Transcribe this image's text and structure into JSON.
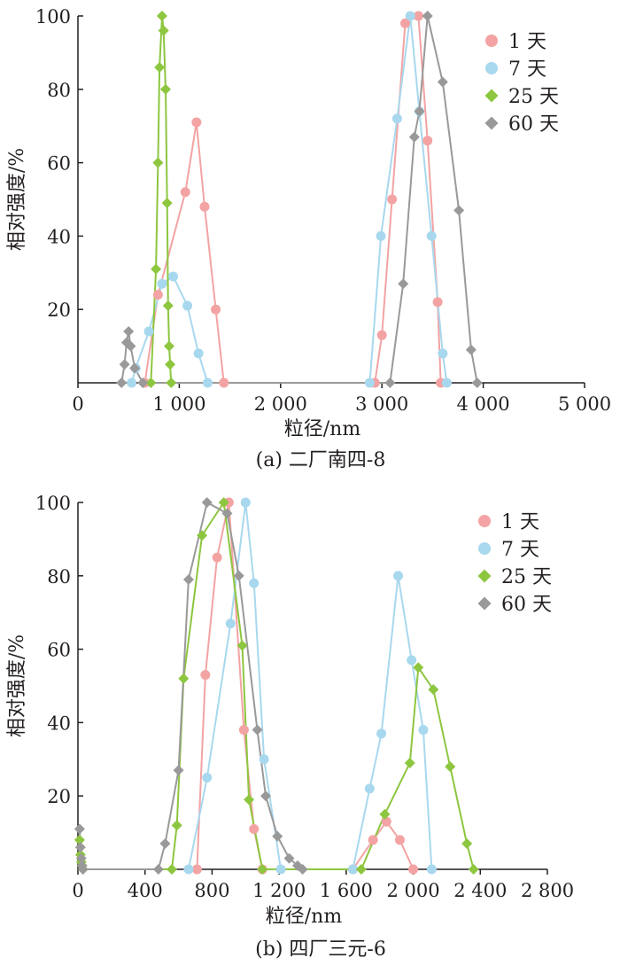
{
  "chart_data": [
    {
      "type": "line",
      "title": "",
      "caption": "(a) 二厂南四-8",
      "xlabel": "粒径/nm",
      "ylabel": "相对强度/%",
      "xlim": [
        0,
        5000
      ],
      "ylim": [
        0,
        100
      ],
      "xticks": [
        0,
        1000,
        2000,
        3000,
        4000,
        5000
      ],
      "xtick_labels": [
        "0",
        "1 000",
        "2 000",
        "3 000",
        "4 000",
        "5 000"
      ],
      "yticks": [
        20,
        40,
        60,
        80,
        100
      ],
      "ytick_labels": [
        "20",
        "40",
        "60",
        "80",
        "100"
      ],
      "grid": false,
      "legend_position": "top-right",
      "series": [
        {
          "name": "1 天",
          "color": "#f3a3a3",
          "marker": "circle",
          "x": [
            660,
            790,
            1060,
            1170,
            1250,
            1360,
            1440,
            2930,
            3000,
            3100,
            3230,
            3360,
            3450,
            3550,
            3580
          ],
          "y": [
            0,
            24,
            52,
            71,
            48,
            20,
            0,
            0,
            13,
            50,
            98,
            100,
            66,
            22,
            0
          ]
        },
        {
          "name": "7 天",
          "color": "#a8d8ee",
          "marker": "circle",
          "x": [
            530,
            570,
            700,
            830,
            940,
            1080,
            1190,
            1280,
            2880,
            2990,
            3150,
            3280,
            3370,
            3490,
            3600,
            3640
          ],
          "y": [
            0,
            4,
            14,
            27,
            29,
            21,
            8,
            0,
            0,
            40,
            72,
            100,
            74,
            40,
            8,
            0
          ]
        },
        {
          "name": "25 天",
          "color": "#8dc63f",
          "marker": "diamond",
          "x": [
            720,
            770,
            790,
            805,
            830,
            845,
            865,
            880,
            890,
            900,
            910,
            920
          ],
          "y": [
            0,
            31,
            60,
            86,
            100,
            96,
            80,
            49,
            21,
            10,
            5,
            0
          ]
        },
        {
          "name": "60 天",
          "color": "#999999",
          "marker": "diamond",
          "x": [
            430,
            460,
            480,
            500,
            520,
            560,
            640,
            3080,
            3210,
            3320,
            3370,
            3450,
            3600,
            3760,
            3880,
            3940
          ],
          "y": [
            0,
            5,
            11,
            14,
            10,
            4,
            0,
            0,
            27,
            67,
            74,
            100,
            82,
            47,
            9,
            0
          ]
        }
      ]
    },
    {
      "type": "line",
      "title": "",
      "caption": "(b) 四厂三元-6",
      "xlabel": "粒径/nm",
      "ylabel": "相对强度/%",
      "xlim": [
        0,
        2800
      ],
      "ylim": [
        0,
        100
      ],
      "xticks": [
        0,
        400,
        800,
        1200,
        1600,
        2000,
        2400,
        2800
      ],
      "xtick_labels": [
        "0",
        "400",
        "800",
        "1 200",
        "1 600",
        "2 000",
        "2 400",
        "2 800"
      ],
      "yticks": [
        20,
        40,
        60,
        80,
        100
      ],
      "ytick_labels": [
        "20",
        "40",
        "60",
        "80",
        "100"
      ],
      "grid": false,
      "legend_position": "top-right",
      "series": [
        {
          "name": "1 天",
          "color": "#f3a3a3",
          "marker": "circle",
          "x": [
            710,
            760,
            830,
            900,
            990,
            1050,
            1100,
            1640,
            1760,
            1840,
            1920,
            2000
          ],
          "y": [
            0,
            53,
            85,
            100,
            38,
            11,
            0,
            0,
            8,
            13,
            8,
            0
          ]
        },
        {
          "name": "7 天",
          "color": "#a8d8ee",
          "marker": "circle",
          "x": [
            660,
            770,
            910,
            1000,
            1050,
            1110,
            1210,
            1640,
            1740,
            1810,
            1910,
            1990,
            2060,
            2110
          ],
          "y": [
            0,
            25,
            67,
            100,
            78,
            30,
            0,
            0,
            22,
            37,
            80,
            57,
            38,
            0
          ]
        },
        {
          "name": "25 天",
          "color": "#8dc63f",
          "marker": "diamond",
          "x": [
            10,
            15,
            20,
            25,
            30,
            560,
            590,
            630,
            740,
            870,
            980,
            1020,
            1100,
            1690,
            1830,
            1980,
            2030,
            2120,
            2220,
            2320,
            2360
          ],
          "y": [
            8,
            4,
            2,
            1,
            0,
            0,
            12,
            52,
            91,
            100,
            61,
            19,
            0,
            0,
            15,
            29,
            55,
            49,
            28,
            7,
            0
          ]
        },
        {
          "name": "60 天",
          "color": "#999999",
          "marker": "diamond",
          "x": [
            10,
            15,
            20,
            25,
            30,
            480,
            520,
            600,
            660,
            770,
            890,
            960,
            1070,
            1120,
            1190,
            1260,
            1310,
            1340
          ],
          "y": [
            11,
            6,
            3,
            1,
            0,
            0,
            7,
            27,
            79,
            100,
            97,
            80,
            38,
            20,
            9,
            3,
            1,
            0
          ]
        }
      ]
    }
  ]
}
